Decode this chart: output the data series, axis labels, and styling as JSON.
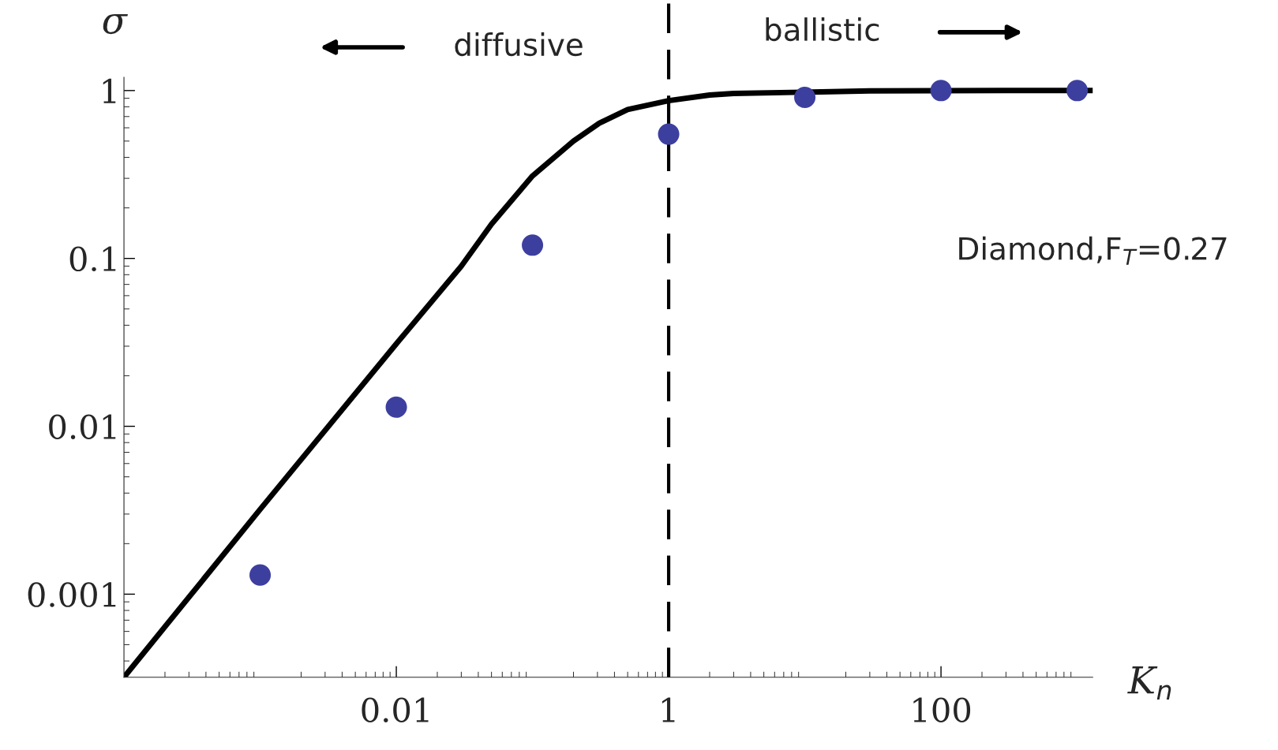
{
  "chart_data": {
    "type": "scatter",
    "log": "xy",
    "xlabel": "K$_{n}$",
    "ylabel": "σ",
    "xlim": [
      0.0001,
      1300
    ],
    "ylim": [
      0.00032,
      1.2
    ],
    "xticks": [
      0.01,
      1,
      100
    ],
    "yticks": [
      0.001,
      0.01,
      0.1,
      1
    ],
    "grid": false,
    "legend": false,
    "series": [
      {
        "type": "line",
        "color": "#000000",
        "marker": "none",
        "line_style": "solid",
        "x": [
          0.0001,
          0.001,
          0.01,
          0.03,
          0.05,
          0.1,
          0.2,
          0.31,
          0.5,
          1,
          2,
          3,
          30,
          300,
          1300
        ],
        "values": [
          0.00032,
          0.0032,
          0.031,
          0.09,
          0.16,
          0.31,
          0.5,
          0.64,
          0.77,
          0.87,
          0.94,
          0.96,
          0.995,
          1.0,
          1.0
        ]
      },
      {
        "color": "#3d3f9f",
        "marker": "circle",
        "x": [
          0.001,
          0.01,
          0.1,
          1,
          10,
          100,
          1000
        ],
        "values": [
          0.0013,
          0.013,
          0.12,
          0.55,
          0.91,
          1.0,
          1.0
        ]
      }
    ],
    "ref_lines": [
      {
        "axis": "x",
        "value": 1,
        "color": "#000000",
        "line_style": "dashed"
      }
    ],
    "annotations": [
      "diffusive",
      "ballistic",
      "Diamond,F$_{T}$=0.27"
    ]
  }
}
